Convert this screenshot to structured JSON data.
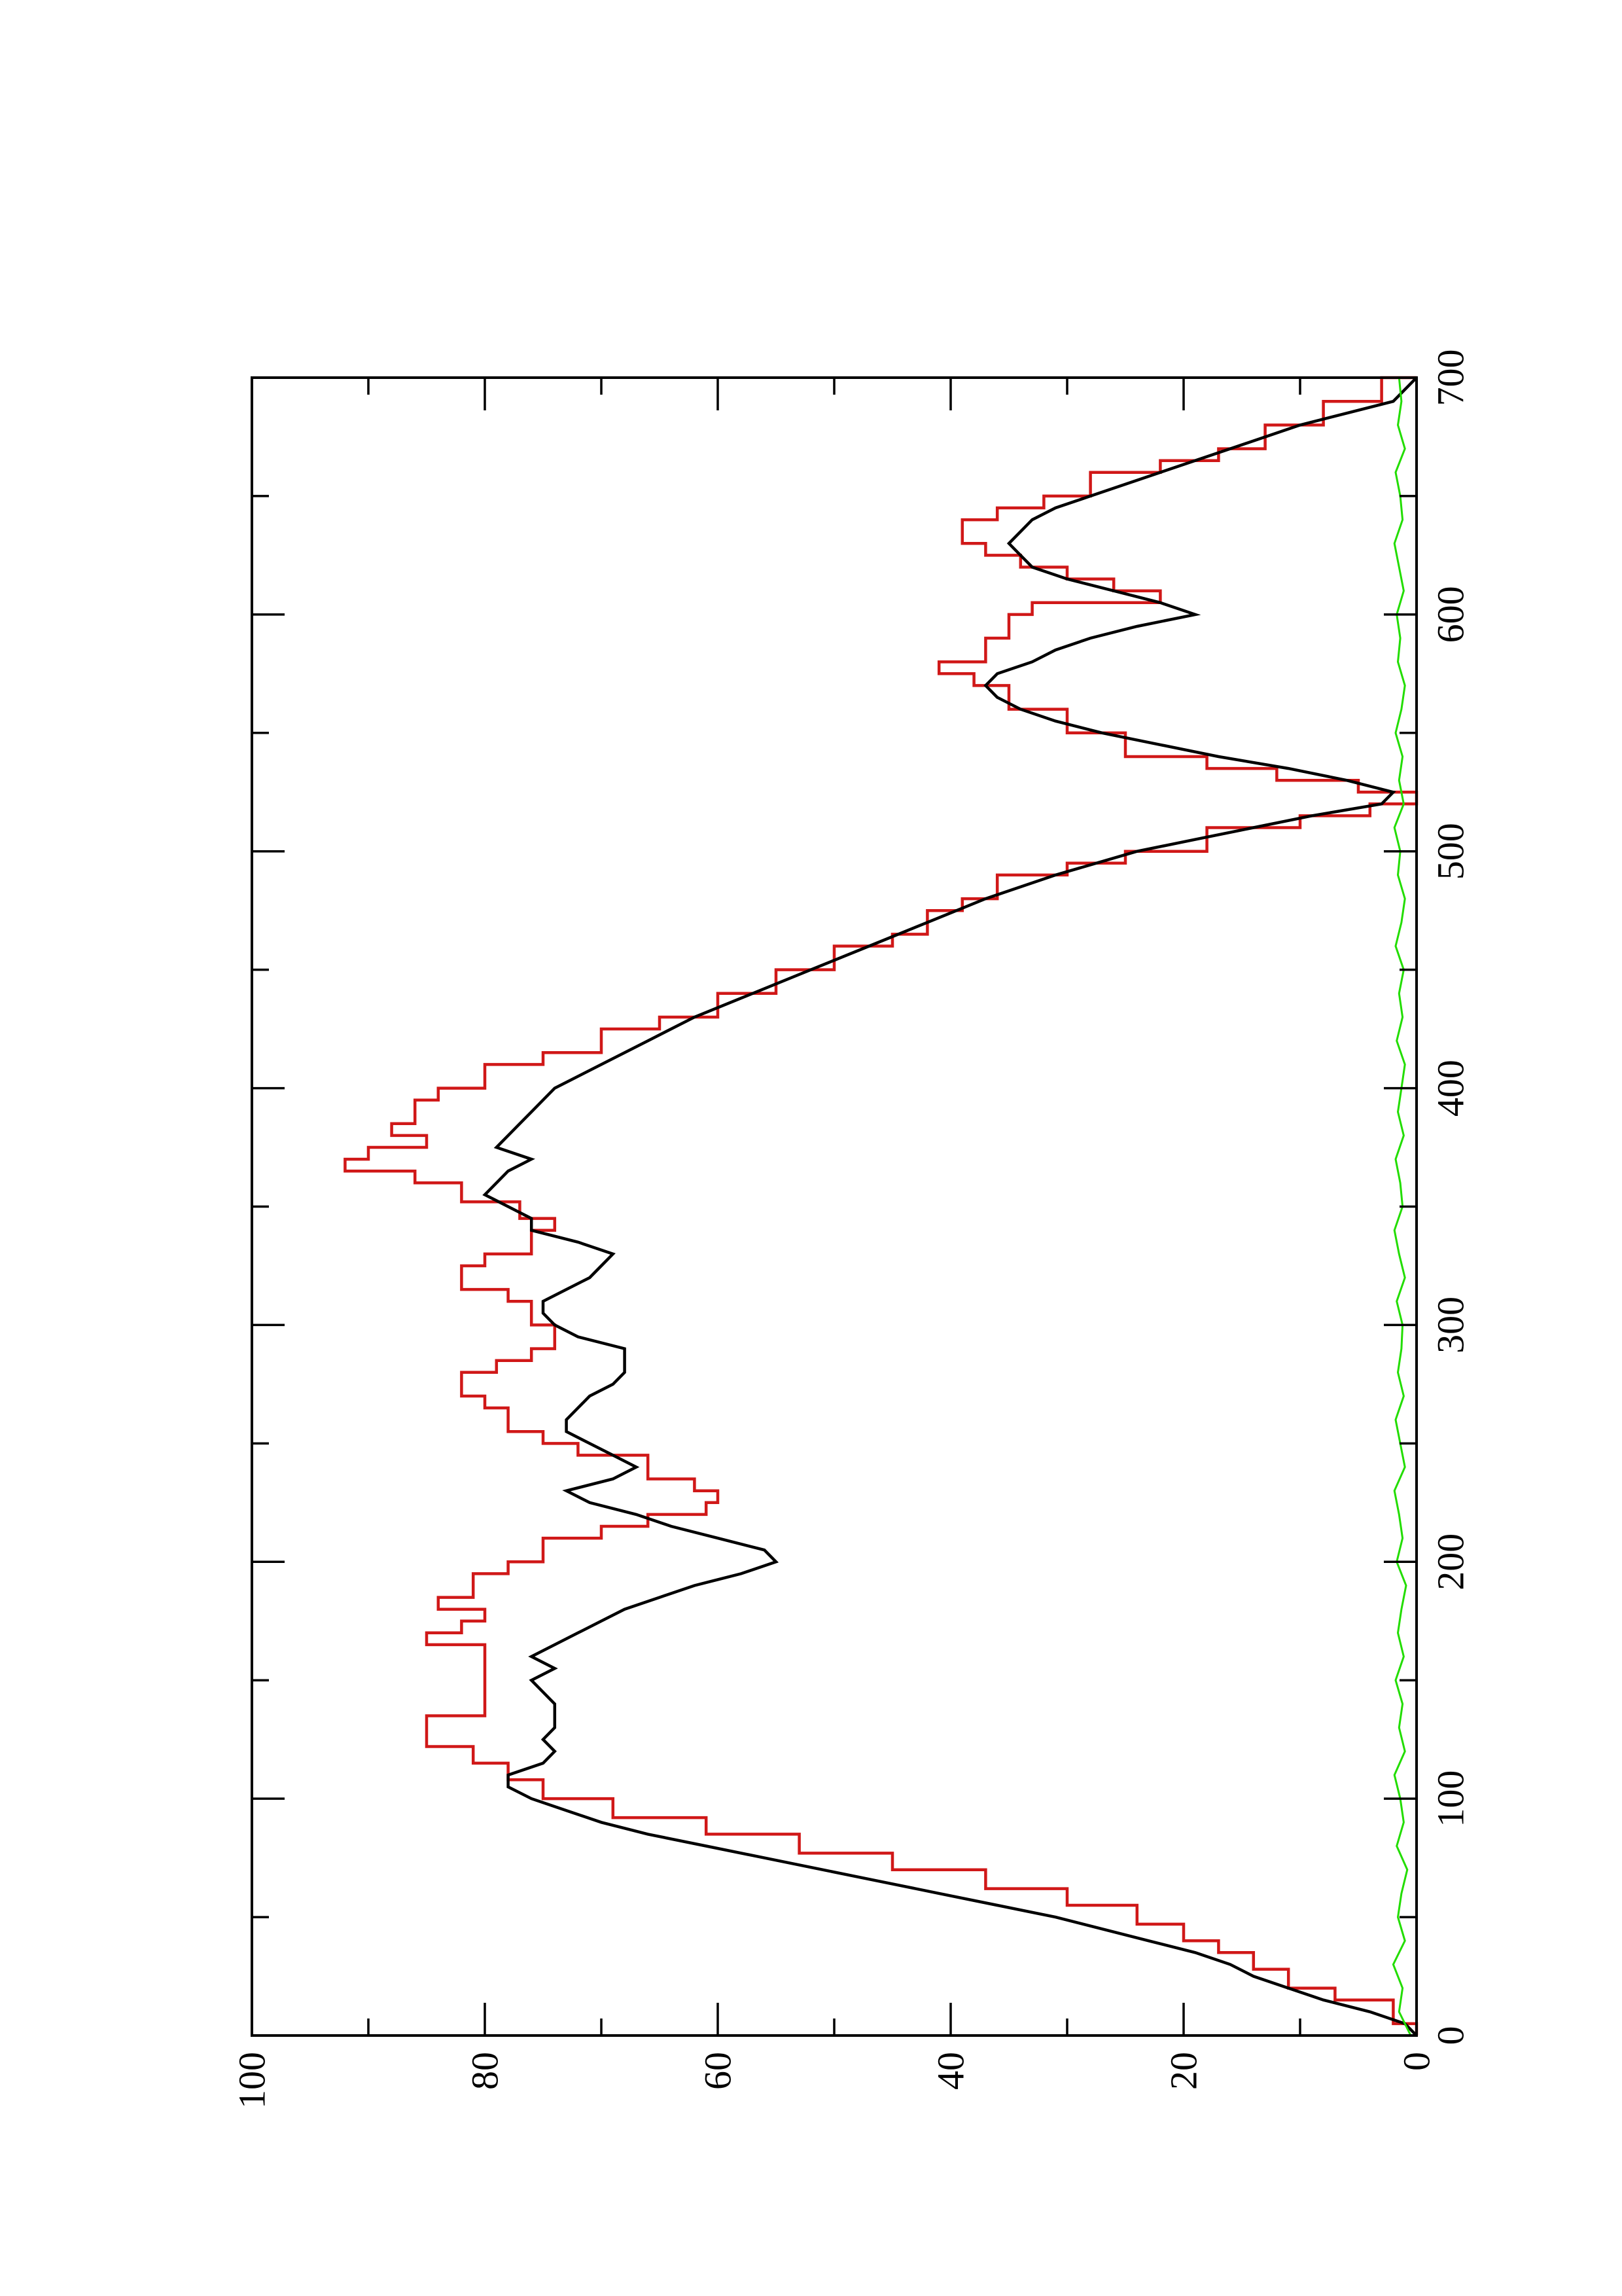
{
  "chart_data": {
    "type": "line",
    "title": "",
    "xlabel": "",
    "ylabel": "",
    "orientation": "rotated-90-ccw",
    "xlim": [
      0,
      700
    ],
    "ylim": [
      0,
      100
    ],
    "x_ticks": [
      "0",
      "100",
      "200",
      "300",
      "400",
      "500",
      "600",
      "700"
    ],
    "x_tick_values": [
      0,
      100,
      200,
      300,
      400,
      500,
      600,
      700
    ],
    "x_minor_tick_values": [
      50,
      150,
      250,
      350,
      450,
      550,
      650
    ],
    "y_ticks": [
      "0",
      "20",
      "40",
      "60",
      "80",
      "100"
    ],
    "y_tick_values": [
      0,
      20,
      40,
      60,
      80,
      100
    ],
    "y_minor_tick_values": [
      10,
      30,
      50,
      70,
      90
    ],
    "grid": false,
    "legend": "none",
    "series": [
      {
        "color": "#d01818",
        "style": "step",
        "x": [
          0,
          5,
          15,
          20,
          28,
          35,
          40,
          47,
          55,
          62,
          70,
          77,
          85,
          92,
          100,
          108,
          115,
          122,
          130,
          135,
          150,
          160,
          165,
          170,
          175,
          180,
          185,
          195,
          200,
          210,
          215,
          220,
          225,
          230,
          235,
          245,
          250,
          255,
          265,
          270,
          280,
          285,
          290,
          300,
          310,
          315,
          325,
          330,
          340,
          345,
          352,
          360,
          365,
          370,
          375,
          380,
          385,
          395,
          400,
          410,
          415,
          425,
          430,
          440,
          450,
          460,
          465,
          475,
          480,
          490,
          495,
          500,
          510,
          515,
          520,
          525,
          530,
          535,
          540,
          550,
          560,
          570,
          575,
          580,
          590,
          600,
          605,
          610,
          615,
          620,
          625,
          630,
          640,
          645,
          650,
          660,
          665,
          670,
          680,
          690,
          700
        ],
        "y": [
          0,
          2,
          7,
          11,
          14,
          17,
          20,
          24,
          30,
          37,
          45,
          53,
          61,
          69,
          75,
          78,
          81,
          85,
          85,
          80,
          80,
          80,
          85,
          82,
          80,
          84,
          81,
          78,
          75,
          70,
          66,
          61,
          60,
          62,
          66,
          72,
          75,
          78,
          80,
          82,
          79,
          76,
          74,
          76,
          78,
          82,
          80,
          76,
          74,
          77,
          82,
          86,
          92,
          90,
          85,
          88,
          86,
          84,
          80,
          75,
          70,
          65,
          60,
          55,
          50,
          45,
          42,
          39,
          36,
          30,
          25,
          18,
          10,
          4,
          0,
          5,
          12,
          18,
          25,
          30,
          35,
          38,
          41,
          37,
          35,
          33,
          22,
          26,
          30,
          34,
          37,
          39,
          36,
          32,
          28,
          22,
          17,
          13,
          8,
          3,
          0
        ]
      },
      {
        "color": "#000000",
        "style": "line",
        "x": [
          0,
          5,
          10,
          15,
          20,
          25,
          30,
          35,
          40,
          45,
          50,
          55,
          60,
          65,
          70,
          75,
          80,
          85,
          90,
          95,
          100,
          105,
          110,
          115,
          120,
          125,
          130,
          135,
          140,
          145,
          150,
          155,
          160,
          165,
          170,
          175,
          180,
          185,
          190,
          195,
          200,
          205,
          210,
          215,
          220,
          225,
          230,
          235,
          240,
          245,
          250,
          255,
          260,
          265,
          270,
          275,
          280,
          285,
          290,
          295,
          300,
          305,
          310,
          315,
          320,
          325,
          330,
          335,
          340,
          345,
          350,
          355,
          360,
          365,
          370,
          375,
          380,
          385,
          390,
          395,
          400,
          410,
          420,
          430,
          440,
          450,
          460,
          470,
          480,
          490,
          500,
          505,
          510,
          515,
          520,
          525,
          530,
          535,
          540,
          545,
          550,
          555,
          560,
          565,
          570,
          575,
          580,
          585,
          590,
          595,
          600,
          605,
          610,
          615,
          620,
          625,
          630,
          635,
          640,
          645,
          650,
          660,
          670,
          680,
          685,
          690,
          700
        ],
        "y": [
          0,
          1,
          4,
          8,
          11,
          14,
          16,
          19,
          23,
          27,
          31,
          36,
          41,
          46,
          51,
          56,
          61,
          66,
          70,
          73,
          76,
          78,
          78,
          75,
          74,
          75,
          74,
          74,
          74,
          75,
          76,
          74,
          76,
          74,
          72,
          70,
          68,
          65,
          62,
          58,
          55,
          56,
          60,
          64,
          67,
          71,
          73,
          69,
          67,
          69,
          71,
          73,
          73,
          72,
          71,
          69,
          68,
          68,
          68,
          72,
          74,
          75,
          75,
          73,
          71,
          70,
          69,
          72,
          76,
          76,
          78,
          80,
          79,
          78,
          76,
          79,
          78,
          77,
          76,
          75,
          74,
          70,
          66,
          62,
          57,
          52,
          47,
          42,
          37,
          31,
          24,
          19,
          14,
          9,
          3,
          2,
          6,
          11,
          17,
          22,
          27,
          31,
          34,
          36,
          37,
          36,
          33,
          31,
          28,
          24,
          19,
          22,
          26,
          30,
          33,
          34,
          35,
          34,
          33,
          31,
          28,
          22,
          16,
          10,
          6,
          2,
          0
        ]
      },
      {
        "color": "#22dd00",
        "style": "noise-line",
        "x": [
          0,
          10,
          20,
          30,
          40,
          50,
          60,
          70,
          80,
          90,
          100,
          110,
          120,
          130,
          140,
          150,
          160,
          170,
          180,
          190,
          200,
          210,
          220,
          230,
          240,
          250,
          260,
          270,
          280,
          290,
          300,
          310,
          320,
          330,
          340,
          350,
          360,
          370,
          380,
          390,
          400,
          410,
          420,
          430,
          440,
          450,
          460,
          470,
          480,
          490,
          500,
          510,
          520,
          530,
          540,
          550,
          560,
          570,
          580,
          590,
          600,
          610,
          620,
          630,
          640,
          650,
          660,
          670,
          680,
          690,
          700
        ],
        "y": [
          0.5,
          1.5,
          1.2,
          2.0,
          1.0,
          1.6,
          1.3,
          0.8,
          1.7,
          1.1,
          1.4,
          1.9,
          1.0,
          1.5,
          1.2,
          1.8,
          1.1,
          1.6,
          1.3,
          0.9,
          1.7,
          1.2,
          1.5,
          1.9,
          1.0,
          1.4,
          1.8,
          1.1,
          1.6,
          1.3,
          1.2,
          1.7,
          1.0,
          1.5,
          1.9,
          1.2,
          1.4,
          1.8,
          1.1,
          1.6,
          1.3,
          1.0,
          1.7,
          1.2,
          1.5,
          1.1,
          1.8,
          1.3,
          1.0,
          1.6,
          1.4,
          1.9,
          1.1,
          1.5,
          1.2,
          1.8,
          1.3,
          1.0,
          1.6,
          1.4,
          1.7,
          1.1,
          1.5,
          1.9,
          1.2,
          1.4,
          1.8,
          1.0,
          1.6,
          1.3,
          1.5
        ]
      }
    ]
  }
}
